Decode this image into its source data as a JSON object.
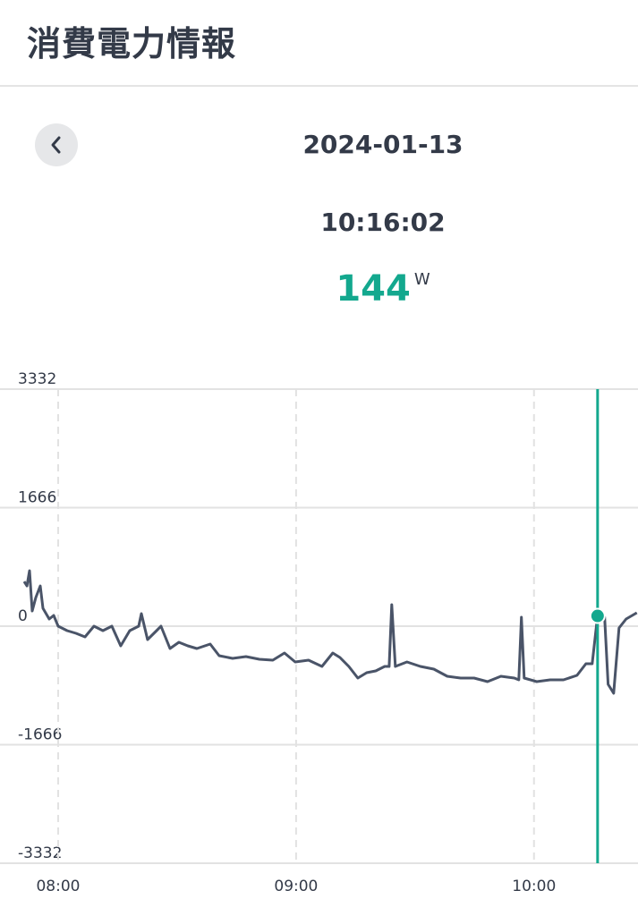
{
  "header": {
    "title": "消費電力情報"
  },
  "reading": {
    "date": "2024-01-13",
    "time": "10:16:02",
    "value": 144,
    "unit": "W"
  },
  "chart_data": {
    "type": "line",
    "x": [
      "07:51:26",
      "07:52:07",
      "07:52:47",
      "07:53:28",
      "07:54:22",
      "07:55:29",
      "07:56:10",
      "07:57:44",
      "07:58:52",
      "08:00:00",
      "08:02:15",
      "08:04:31",
      "08:06:46",
      "08:09:01",
      "08:11:17",
      "08:13:32",
      "08:15:47",
      "08:18:03",
      "08:20:18",
      "08:20:59",
      "08:22:33",
      "08:24:49",
      "08:25:56",
      "08:28:12",
      "08:30:27",
      "08:32:42",
      "08:34:58",
      "08:38:21",
      "08:40:36",
      "08:43:59",
      "08:47:22",
      "08:50:45",
      "08:54:08",
      "08:57:04",
      "08:59:46",
      "09:03:09",
      "09:06:32",
      "09:09:15",
      "09:11:03",
      "09:13:18",
      "09:15:34",
      "09:17:49",
      "09:20:05",
      "09:22:20",
      "09:23:28",
      "09:24:08",
      "09:25:02",
      "09:27:58",
      "09:31:21",
      "09:34:44",
      "09:38:07",
      "09:41:30",
      "09:44:53",
      "09:48:16",
      "09:51:39",
      "09:55:02",
      "09:56:10",
      "09:56:50",
      "09:57:31",
      "10:00:41",
      "10:04:04",
      "10:07:26",
      "10:10:50",
      "10:13:05",
      "10:14:40",
      "10:16:02",
      "10:16:54",
      "10:17:48",
      "10:18:42",
      "10:20:05",
      "10:21:26",
      "10:23:13",
      "10:25:56"
    ],
    "series": [
      {
        "color": "#4a5468",
        "values": [
          628,
          566,
          779,
          214,
          402,
          566,
          251,
          101,
          151,
          0,
          -63,
          -101,
          -151,
          0,
          -63,
          0,
          -277,
          -63,
          0,
          176,
          -189,
          -63,
          0,
          -314,
          -226,
          -277,
          -314,
          -251,
          -415,
          -453,
          -427,
          -465,
          -478,
          -377,
          -503,
          -478,
          -566,
          -377,
          -440,
          -566,
          -729,
          -654,
          -629,
          -566,
          -566,
          302,
          -566,
          -503,
          -566,
          -603,
          -704,
          -729,
          -729,
          -779,
          -704,
          -729,
          -754,
          126,
          -729,
          -779,
          -754,
          -754,
          -691,
          -528,
          -528,
          144,
          101,
          126,
          -817,
          -943,
          -25,
          101,
          189
        ]
      }
    ],
    "xlim": [
      "07:45:20",
      "10:26:00"
    ],
    "xticks": [
      "08:00",
      "09:00",
      "10:00"
    ],
    "ylim": [
      -3332,
      3332
    ],
    "yticks": [
      3332,
      1666,
      0,
      -1666,
      -3332
    ],
    "grid": true,
    "highlight_color": "#13a88e"
  }
}
